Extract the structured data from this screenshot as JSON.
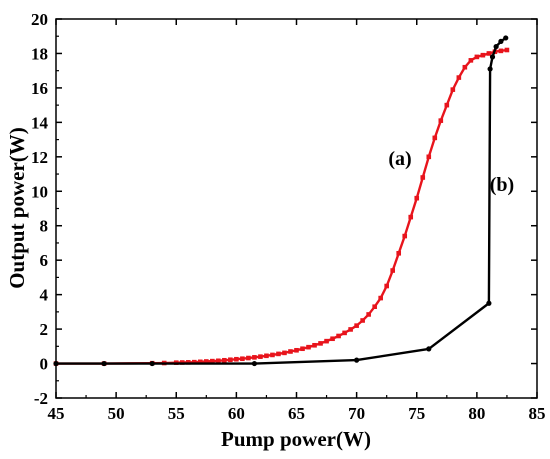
{
  "chart_data": {
    "type": "line",
    "xlabel": "Pump power(W)",
    "ylabel": "Output power(W)",
    "xlim": [
      45,
      85
    ],
    "ylim": [
      -2,
      20
    ],
    "xticks": [
      45,
      50,
      55,
      60,
      65,
      70,
      75,
      80,
      85
    ],
    "yticks": [
      -2,
      0,
      2,
      4,
      6,
      8,
      10,
      12,
      14,
      16,
      18,
      20
    ],
    "grid": false,
    "legend": "none",
    "annotations": [
      {
        "text": "(a)",
        "series": "a"
      },
      {
        "text": "(b)",
        "series": "b"
      }
    ],
    "series": [
      {
        "id": "a",
        "color": "#e8141c",
        "marker": "square",
        "x": [
          45.0,
          49.0,
          53.0,
          54.0,
          55.0,
          55.5,
          56.0,
          56.5,
          57.0,
          57.5,
          58.0,
          58.5,
          59.0,
          59.5,
          60.0,
          60.5,
          61.0,
          61.5,
          62.0,
          62.5,
          63.0,
          63.5,
          64.0,
          64.5,
          65.0,
          65.5,
          66.0,
          66.5,
          67.0,
          67.5,
          68.0,
          68.5,
          69.0,
          69.5,
          70.0,
          70.5,
          71.0,
          71.5,
          72.0,
          72.5,
          73.0,
          73.5,
          74.0,
          74.5,
          75.0,
          75.5,
          76.0,
          76.5,
          77.0,
          77.5,
          78.0,
          78.5,
          79.0,
          79.5,
          80.0,
          80.5,
          81.0,
          81.5,
          82.0,
          82.5
        ],
        "y": [
          0.0,
          0.0,
          0.02,
          0.03,
          0.05,
          0.06,
          0.07,
          0.08,
          0.1,
          0.12,
          0.14,
          0.16,
          0.19,
          0.22,
          0.25,
          0.28,
          0.32,
          0.36,
          0.4,
          0.45,
          0.5,
          0.56,
          0.62,
          0.7,
          0.77,
          0.86,
          0.95,
          1.06,
          1.17,
          1.3,
          1.44,
          1.6,
          1.78,
          1.98,
          2.2,
          2.5,
          2.85,
          3.3,
          3.8,
          4.5,
          5.4,
          6.4,
          7.4,
          8.5,
          9.6,
          10.8,
          12.0,
          13.1,
          14.1,
          15.0,
          15.9,
          16.6,
          17.2,
          17.6,
          17.8,
          17.9,
          18.0,
          18.1,
          18.15,
          18.2
        ]
      },
      {
        "id": "b",
        "color": "#000000",
        "marker": "circle",
        "x": [
          45.0,
          49.0,
          53.0,
          61.5,
          70.0,
          76.0,
          81.0,
          81.1,
          81.3,
          81.6,
          82.0,
          82.4
        ],
        "y": [
          0.0,
          0.0,
          0.0,
          0.0,
          0.2,
          0.85,
          3.5,
          17.1,
          17.8,
          18.4,
          18.7,
          18.9
        ]
      }
    ]
  }
}
